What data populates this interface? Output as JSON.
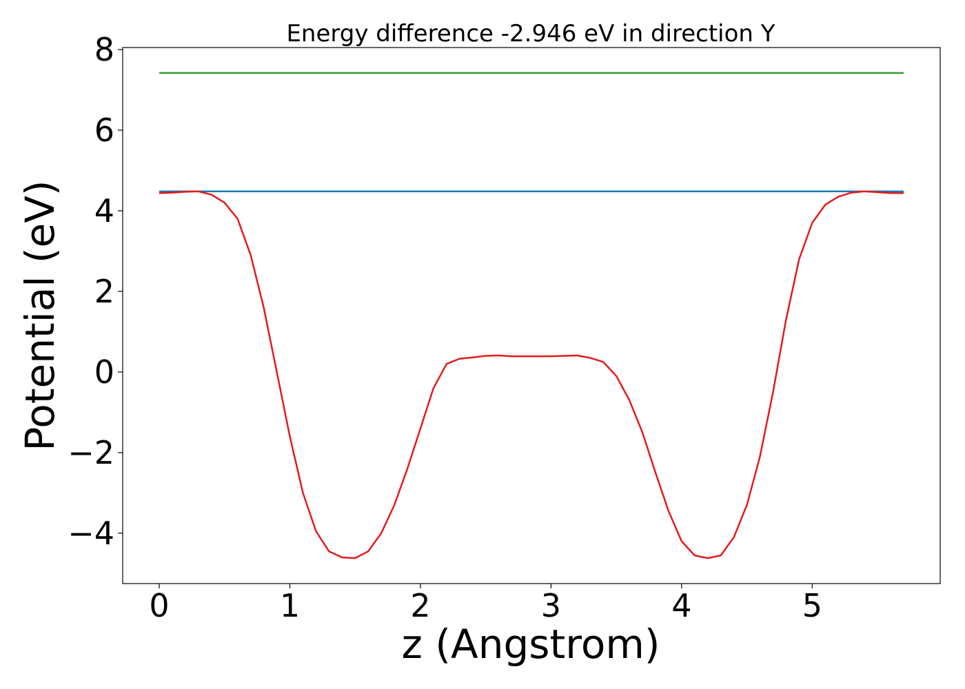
{
  "chart_data": {
    "type": "line",
    "title": "Energy difference -2.946 eV in direction Y",
    "xlabel": "z (Angstrom)",
    "ylabel": "Potential (eV)",
    "xlim": [
      -0.28,
      5.98
    ],
    "ylim": [
      -5.25,
      8.05
    ],
    "xticks": [
      0,
      1,
      2,
      3,
      4,
      5
    ],
    "yticks": [
      -4,
      -2,
      0,
      2,
      4,
      6,
      8
    ],
    "xtick_labels": [
      "0",
      "1",
      "2",
      "3",
      "4",
      "5"
    ],
    "ytick_labels": [
      "−4",
      "−2",
      "0",
      "2",
      "4",
      "6",
      "8"
    ],
    "grid": false,
    "legend": "none",
    "series": [
      {
        "color": "#2ca02c",
        "x": [
          0,
          5.7
        ],
        "y": [
          7.42,
          7.42
        ]
      },
      {
        "color": "#1f77b4",
        "x": [
          0,
          5.7
        ],
        "y": [
          4.48,
          4.48
        ]
      },
      {
        "color": "#e41a1c",
        "x": [
          0,
          0.1,
          0.2,
          0.3,
          0.4,
          0.5,
          0.6,
          0.7,
          0.8,
          0.9,
          1.0,
          1.1,
          1.2,
          1.3,
          1.4,
          1.5,
          1.6,
          1.7,
          1.8,
          1.9,
          2.0,
          2.1,
          2.2,
          2.3,
          2.4,
          2.5,
          2.6,
          2.7,
          2.8,
          2.9,
          3.0,
          3.1,
          3.2,
          3.3,
          3.4,
          3.5,
          3.6,
          3.7,
          3.8,
          3.9,
          4.0,
          4.1,
          4.2,
          4.3,
          4.4,
          4.5,
          4.6,
          4.7,
          4.8,
          4.9,
          5.0,
          5.1,
          5.2,
          5.3,
          5.4,
          5.5,
          5.6,
          5.7
        ],
        "y": [
          4.44,
          4.45,
          4.47,
          4.48,
          4.4,
          4.2,
          3.8,
          2.9,
          1.6,
          0.0,
          -1.6,
          -3.0,
          -3.95,
          -4.45,
          -4.6,
          -4.62,
          -4.45,
          -4.0,
          -3.3,
          -2.4,
          -1.4,
          -0.4,
          0.2,
          0.33,
          0.36,
          0.4,
          0.41,
          0.39,
          0.39,
          0.39,
          0.39,
          0.4,
          0.41,
          0.35,
          0.25,
          -0.1,
          -0.7,
          -1.5,
          -2.5,
          -3.45,
          -4.2,
          -4.55,
          -4.62,
          -4.55,
          -4.1,
          -3.3,
          -2.1,
          -0.5,
          1.3,
          2.8,
          3.7,
          4.15,
          4.35,
          4.45,
          4.48,
          4.46,
          4.44,
          4.44
        ]
      }
    ]
  }
}
